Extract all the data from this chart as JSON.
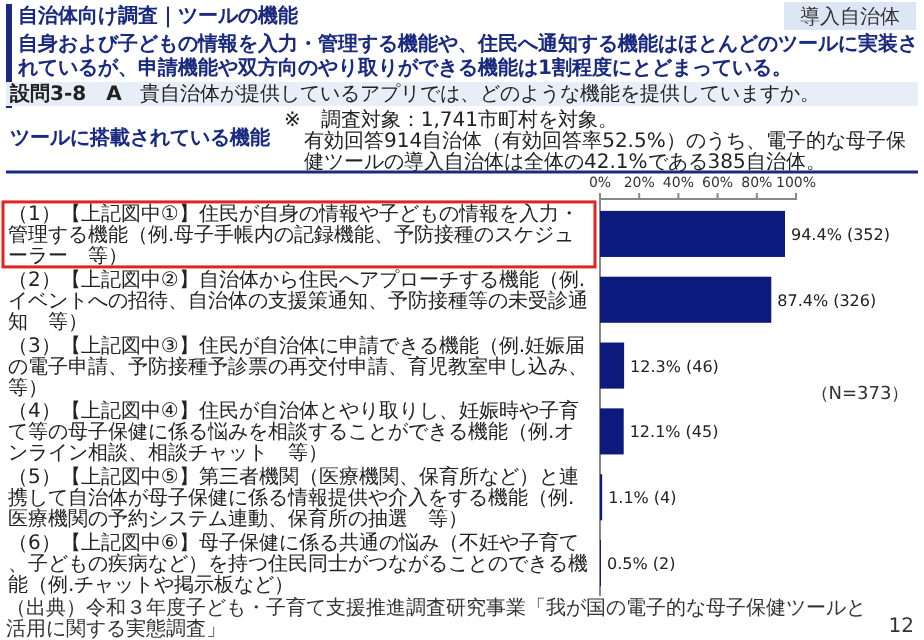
{
  "chart_data": {
    "type": "bar",
    "orientation": "horizontal",
    "title": "自身および子どもの情報を入力・管理する機能や、住民へ通知する機能はほとんどのツールに実装されているが、申請機能や双方向のやり取りができる機能は1割程度にとどまっている。",
    "categories": [
      "（1）【上記図中①】住民が自身の情報や子どもの情報を入力・管理する機能（例.母子手帳内の記録機能、予防接種のスケジューラー　等）",
      "（2）【上記図中②】自治体から住民へアプローチする機能（例.イベントへの招待、自治体の支援策通知、予防接種等の未受診通知　等）",
      "（3）【上記図中③】住民が自治体に申請できる機能（例.妊娠届の電子申請、予防接種予診票の再交付申請、育児教室申し込み、等）",
      "（4）【上記図中④】住民が自治体とやり取りし、妊娠時や子育て等の母子保健に係る悩みを相談することができる機能（例.オンライン相談、相談チャット　等）",
      "（5）【上記図中⑤】第三者機関（医療機関、保育所など）と連携して自治体が母子保健に係る情報提供や介入をする機能（例.医療機関の予約システム連動、保育所の抽選　等）",
      "（6）【上記図中⑥】母子保健に係る共通の悩み（不妊や子育て、子どもの疾病など）を持つ住民同士がつながることのできる機能（例.チャットや掲示板など）"
    ],
    "values": [
      94.4,
      87.4,
      12.3,
      12.1,
      1.1,
      0.5
    ],
    "value_labels": [
      "94.4% (352)",
      "87.4% (326)",
      "12.3% (46)",
      "12.1% (45)",
      "1.1% (4)",
      "0.5% (2)"
    ],
    "color": "#0c1a7e",
    "xlim": [
      0,
      100
    ],
    "xticks": [
      {
        "value": 0,
        "label": "0%"
      },
      {
        "value": 20,
        "label": "20%"
      },
      {
        "value": 40,
        "label": "40%"
      },
      {
        "value": 60,
        "label": "60%"
      },
      {
        "value": 80,
        "label": "80%"
      },
      {
        "value": 100,
        "label": "100%"
      }
    ],
    "annotations": [
      "自治体向け調査｜ツールの機能",
      "導入自治体",
      "設問3-8　A",
      "貴自治体が提供しているアプリでは、どのような機能を提供していますか。",
      "ツールに搭載されている機能",
      "※　調査対象：1,741市町村を対象。",
      "有効回答914自治体（有効回答率52.5%）のうち、電子的な母子保健ツールの導入自治体は全体の42.1%である385自治体。",
      "（N=373）",
      "（出典）令和３年度子ども・子育て支援推進調査研究事業「我が国の電子的な母子保健ツールと活用に関する実態調査」",
      "12"
    ]
  }
}
